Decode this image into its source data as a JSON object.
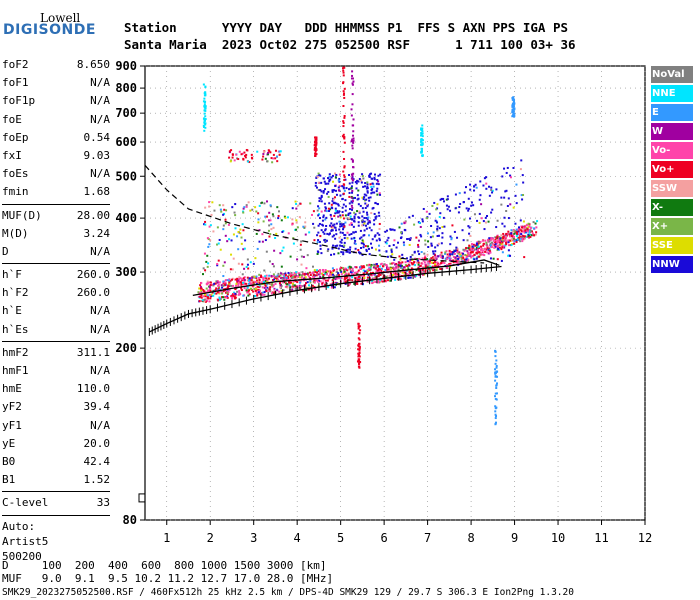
{
  "logo": {
    "line1": "Lowell",
    "line2": "DIGISONDE"
  },
  "header": {
    "row1": "Station      YYYY DAY   DDD HHMMSS P1  FFS S AXN PPS IGA PS",
    "row2": "Santa Maria  2023 Oct02 275 052500 RSF      1 711 100 03+ 36"
  },
  "params": [
    {
      "label": "foF2",
      "value": "8.650"
    },
    {
      "label": "foF1",
      "value": "N/A"
    },
    {
      "label": "foF1p",
      "value": "N/A"
    },
    {
      "label": "foE",
      "value": "N/A"
    },
    {
      "label": "foEp",
      "value": "0.54"
    },
    {
      "label": "fxI",
      "value": "9.03"
    },
    {
      "label": "foEs",
      "value": "N/A"
    },
    {
      "label": "fmin",
      "value": "1.68"
    },
    {
      "sep": true
    },
    {
      "label": "MUF(D)",
      "value": "28.00"
    },
    {
      "label": "M(D)",
      "value": "3.24"
    },
    {
      "label": "D",
      "value": "N/A"
    },
    {
      "sep": true
    },
    {
      "label": "h`F",
      "value": "260.0"
    },
    {
      "label": "h`F2",
      "value": "260.0"
    },
    {
      "label": "h`E",
      "value": "N/A"
    },
    {
      "label": "h`Es",
      "value": "N/A"
    },
    {
      "sep": true
    },
    {
      "label": "hmF2",
      "value": "311.1"
    },
    {
      "label": "hmF1",
      "value": "N/A"
    },
    {
      "label": "hmE",
      "value": "110.0"
    },
    {
      "label": "yF2",
      "value": "39.4"
    },
    {
      "label": "yF1",
      "value": "N/A"
    },
    {
      "label": "yE",
      "value": "20.0"
    },
    {
      "label": "B0",
      "value": "42.4"
    },
    {
      "label": "B1",
      "value": "1.52"
    },
    {
      "sep": true
    },
    {
      "label": "C-level",
      "value": "33"
    },
    {
      "sep": true
    }
  ],
  "auto": {
    "line1": "Auto:",
    "line2": "Artist5",
    "line3": "500200"
  },
  "legend": [
    {
      "label": "NoVal",
      "color": "#808080"
    },
    {
      "label": "NNE",
      "color": "#00e5ff"
    },
    {
      "label": "E",
      "color": "#3399ff"
    },
    {
      "label": "W",
      "color": "#a000a0"
    },
    {
      "label": "Vo-",
      "color": "#ff44aa"
    },
    {
      "label": "Vo+",
      "color": "#ee0022"
    },
    {
      "label": "SSW",
      "color": "#f4a0a0"
    },
    {
      "label": "X-",
      "color": "#107a10"
    },
    {
      "label": "X+",
      "color": "#7ab648"
    },
    {
      "label": "SSE",
      "color": "#dddd00"
    },
    {
      "label": "NNW",
      "color": "#1a0ad8"
    }
  ],
  "chart_data": {
    "type": "scatter",
    "xlabel": "",
    "ylabel": "",
    "xlim": [
      0.5,
      12
    ],
    "ylim": [
      80,
      900
    ],
    "y_scale": "log",
    "x_ticks": [
      1,
      2,
      3,
      4,
      5,
      6,
      7,
      8,
      9,
      10,
      11,
      12
    ],
    "y_ticks": [
      80,
      200,
      300,
      400,
      500,
      600,
      700,
      800,
      900
    ],
    "grid": "dotted",
    "profile_curve": [
      [
        1.6,
        265
      ],
      [
        2.5,
        275
      ],
      [
        3.5,
        285
      ],
      [
        4.5,
        290
      ],
      [
        5.5,
        296
      ],
      [
        6.5,
        303
      ],
      [
        7.5,
        310
      ],
      [
        8.3,
        320
      ],
      [
        8.65,
        311
      ]
    ],
    "trace_x": [
      [
        0.6,
        218
      ],
      [
        1.0,
        228
      ],
      [
        1.5,
        240
      ],
      [
        2.0,
        246
      ],
      [
        3.0,
        260
      ],
      [
        4.0,
        272
      ],
      [
        5.0,
        282
      ],
      [
        6.0,
        290
      ],
      [
        7.0,
        298
      ],
      [
        8.0,
        304
      ],
      [
        8.7,
        309
      ]
    ],
    "dashed_curve": [
      [
        0.5,
        530
      ],
      [
        1.0,
        465
      ],
      [
        1.5,
        420
      ],
      [
        2.5,
        388
      ],
      [
        3.5,
        365
      ],
      [
        4.5,
        348
      ],
      [
        5.5,
        330
      ],
      [
        6.5,
        322
      ],
      [
        7.5,
        318
      ],
      [
        8.3,
        315
      ]
    ]
  },
  "bottom": {
    "d_row": "D     100  200  400  600  800 1000 1500 3000 [km]",
    "muf_row": "MUF   9.0  9.1  9.5 10.2 11.2 12.7 17.0 28.0 [MHz]",
    "footer": "SMK29_2023275052500.RSF / 460Fx512h 25 kHz 2.5 km / DPS-4D SMK29 129 / 29.7 S 306.3 E Ion2Png 1.3.20"
  }
}
